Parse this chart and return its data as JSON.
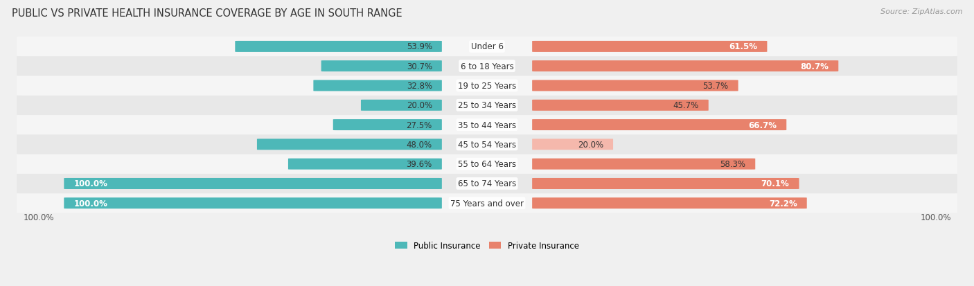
{
  "title": "PUBLIC VS PRIVATE HEALTH INSURANCE COVERAGE BY AGE IN SOUTH RANGE",
  "source": "Source: ZipAtlas.com",
  "categories": [
    "Under 6",
    "6 to 18 Years",
    "19 to 25 Years",
    "25 to 34 Years",
    "35 to 44 Years",
    "45 to 54 Years",
    "55 to 64 Years",
    "65 to 74 Years",
    "75 Years and over"
  ],
  "public_values": [
    53.9,
    30.7,
    32.8,
    20.0,
    27.5,
    48.0,
    39.6,
    100.0,
    100.0
  ],
  "private_values": [
    61.5,
    80.7,
    53.7,
    45.7,
    66.7,
    20.0,
    58.3,
    70.1,
    72.2
  ],
  "public_color": "#4db8b8",
  "private_color_full": "#e8826c",
  "private_color_light": "#f5b8ac",
  "bg_color": "#f0f0f0",
  "row_bg_light": "#f5f5f5",
  "row_bg_dark": "#e8e8e8",
  "max_value": 100.0,
  "legend_public": "Public Insurance",
  "legend_private": "Private Insurance",
  "title_fontsize": 10.5,
  "label_fontsize": 8.5,
  "value_fontsize": 8.5,
  "source_fontsize": 8,
  "private_light_threshold": 30.0
}
